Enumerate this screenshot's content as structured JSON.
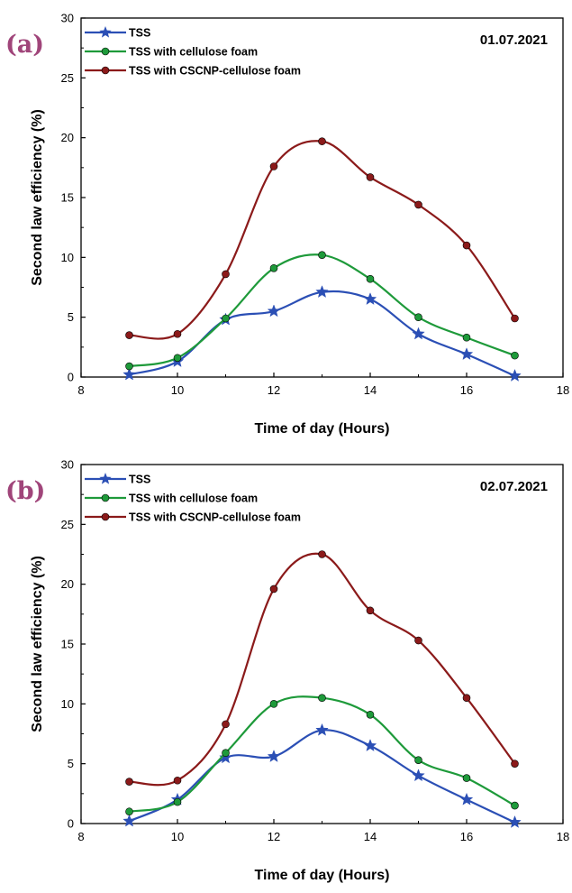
{
  "chart_data": [
    {
      "type": "line",
      "panel_label": "(a)",
      "date": "01.07.2021",
      "xlabel": "Time of day (Hours)",
      "ylabel": "Second law efficiency (%)",
      "xlim": [
        8,
        18
      ],
      "ylim": [
        0,
        30
      ],
      "xticks": [
        8,
        10,
        12,
        14,
        16,
        18
      ],
      "yticks": [
        0,
        5,
        10,
        15,
        20,
        25,
        30
      ],
      "grid": false,
      "legend_position": "top-left",
      "x": [
        9,
        10,
        11,
        12,
        13,
        14,
        15,
        16,
        17
      ],
      "series": [
        {
          "name": "TSS",
          "marker": "star",
          "color": "#2b4fb5",
          "values": [
            0.2,
            1.3,
            4.8,
            5.5,
            7.1,
            6.5,
            3.6,
            1.9,
            0.1
          ]
        },
        {
          "name": "TSS with cellulose foam",
          "marker": "circle",
          "color": "#1e9a3a",
          "values": [
            0.9,
            1.6,
            4.9,
            9.1,
            10.2,
            8.2,
            5.0,
            3.3,
            1.8
          ]
        },
        {
          "name": "TSS with CSCNP-cellulose foam",
          "marker": "circle",
          "color": "#8b1a1a",
          "values": [
            3.5,
            3.6,
            8.6,
            17.6,
            19.7,
            16.7,
            14.4,
            11.0,
            4.9
          ]
        }
      ]
    },
    {
      "type": "line",
      "panel_label": "(b)",
      "date": "02.07.2021",
      "xlabel": "Time of day (Hours)",
      "ylabel": "Second law efficiency (%)",
      "xlim": [
        8,
        18
      ],
      "ylim": [
        0,
        30
      ],
      "xticks": [
        8,
        10,
        12,
        14,
        16,
        18
      ],
      "yticks": [
        0,
        5,
        10,
        15,
        20,
        25,
        30
      ],
      "grid": false,
      "legend_position": "top-left",
      "x": [
        9,
        10,
        11,
        12,
        13,
        14,
        15,
        16,
        17
      ],
      "series": [
        {
          "name": "TSS",
          "marker": "star",
          "color": "#2b4fb5",
          "values": [
            0.2,
            2.0,
            5.5,
            5.6,
            7.8,
            6.5,
            4.0,
            2.0,
            0.1
          ]
        },
        {
          "name": "TSS with cellulose foam",
          "marker": "circle",
          "color": "#1e9a3a",
          "values": [
            1.0,
            1.8,
            5.9,
            10.0,
            10.5,
            9.1,
            5.3,
            3.8,
            1.5
          ]
        },
        {
          "name": "TSS with CSCNP-cellulose foam",
          "marker": "circle",
          "color": "#8b1a1a",
          "values": [
            3.5,
            3.6,
            8.3,
            19.6,
            22.5,
            17.8,
            15.3,
            10.5,
            5.0
          ]
        }
      ]
    }
  ],
  "label_color": "#a0457a"
}
